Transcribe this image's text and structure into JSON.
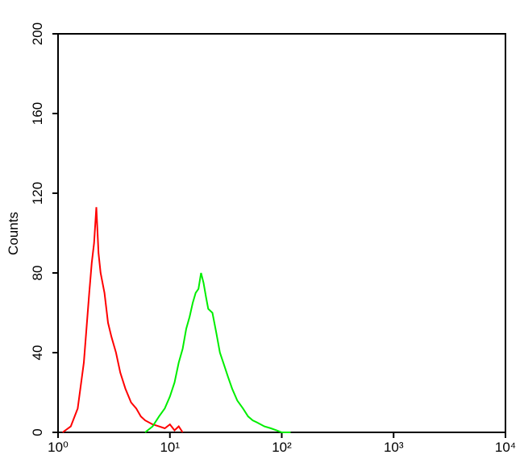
{
  "chart_data": {
    "type": "line",
    "y_label": "Counts",
    "x_log": true,
    "xlim": [
      1,
      10000
    ],
    "xticks": [
      {
        "value": 1,
        "label": "10⁰"
      },
      {
        "value": 10,
        "label": "10¹"
      },
      {
        "value": 100,
        "label": "10²"
      },
      {
        "value": 1000,
        "label": "10³"
      },
      {
        "value": 10000,
        "label": "10⁴"
      }
    ],
    "ylim": [
      0,
      200
    ],
    "yticks": [
      0,
      40,
      80,
      120,
      160,
      200
    ],
    "series": [
      {
        "color": "#ff0000",
        "x": [
          1.1,
          1.3,
          1.5,
          1.7,
          1.9,
          2.0,
          2.1,
          2.2,
          2.3,
          2.4,
          2.6,
          2.8,
          3.0,
          3.3,
          3.6,
          4.0,
          4.5,
          5.0,
          5.5,
          6.0,
          7.0,
          8.0,
          9.0,
          10,
          11,
          12,
          13
        ],
        "values": [
          0,
          3,
          12,
          35,
          70,
          85,
          95,
          113,
          90,
          80,
          70,
          55,
          48,
          40,
          30,
          22,
          15,
          12,
          8,
          6,
          4,
          3,
          2,
          4,
          1,
          3,
          0
        ]
      },
      {
        "color": "#00ee00",
        "x": [
          6,
          7,
          8,
          9,
          10,
          11,
          12,
          13,
          14,
          15,
          16,
          17,
          18,
          19,
          20,
          21,
          22,
          24,
          26,
          28,
          30,
          33,
          36,
          40,
          45,
          50,
          55,
          60,
          70,
          80,
          90,
          100,
          120
        ],
        "values": [
          0,
          3,
          8,
          12,
          18,
          25,
          35,
          42,
          52,
          58,
          65,
          70,
          72,
          80,
          75,
          68,
          62,
          60,
          50,
          40,
          35,
          28,
          22,
          16,
          12,
          8,
          6,
          5,
          3,
          2,
          1,
          0,
          0
        ]
      }
    ]
  }
}
